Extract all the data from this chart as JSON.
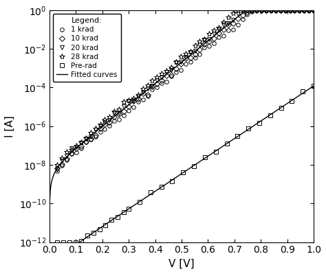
{
  "title": "",
  "xlabel": "V [V]",
  "ylabel": "I [A]",
  "xlim": [
    0,
    1.0
  ],
  "ylim_log": [
    -12,
    0
  ],
  "legend_title": "Legend:",
  "series": [
    {
      "label": "1 krad",
      "marker": "o",
      "color": "black"
    },
    {
      "label": "10 krad",
      "marker": "D",
      "color": "black"
    },
    {
      "label": "20 krad",
      "marker": "v",
      "color": "black"
    },
    {
      "label": "28 krad",
      "marker": "*",
      "color": "black"
    },
    {
      "label": "Pre-rad",
      "marker": "s",
      "color": "black"
    }
  ],
  "fitted_label": "Fitted curves",
  "background": "#ffffff",
  "irrad_I0": 5e-09,
  "irrad_n": 1.5,
  "prerad_I0": 1e-13,
  "prerad_n": 1.85,
  "VT": 0.02585
}
